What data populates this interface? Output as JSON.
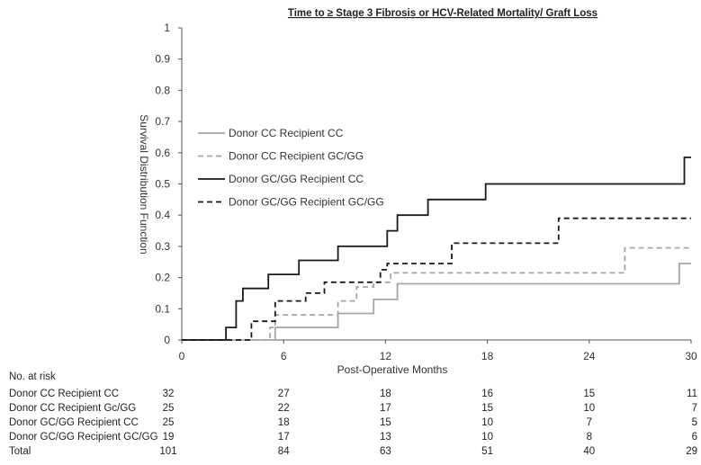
{
  "chart_data": {
    "type": "line",
    "title": "Time to ≥ Stage 3 Fibrosis or HCV-Related Mortality/ Graft Loss",
    "xlabel": "Post-Operative Months",
    "ylabel": "Survival Distribution Function",
    "xlim": [
      0,
      30
    ],
    "ylim": [
      0,
      1
    ],
    "xticks": [
      0,
      6,
      12,
      18,
      24,
      30
    ],
    "yticks": [
      0,
      0.1,
      0.2,
      0.3,
      0.4,
      0.5,
      0.6,
      0.7,
      0.8,
      0.9,
      1
    ],
    "grid": false,
    "legend_position": "left-middle",
    "series": [
      {
        "name": "Donor CC Recipient CC",
        "color": "#a6a6a6",
        "dash": "solid",
        "x": [
          0,
          5.5,
          5.5,
          9.2,
          9.2,
          11.3,
          11.3,
          12.7,
          12.7,
          29.3,
          29.3,
          30
        ],
        "y": [
          0,
          0,
          0.04,
          0.04,
          0.085,
          0.085,
          0.13,
          0.13,
          0.18,
          0.18,
          0.245,
          0.245
        ]
      },
      {
        "name": "Donor CC Recipient GC/GG",
        "color": "#a6a6a6",
        "dash": "dashed",
        "x": [
          0,
          5.2,
          5.2,
          5.5,
          5.5,
          9.2,
          9.2,
          10.3,
          10.3,
          11.3,
          11.3,
          12.3,
          12.3,
          26.1,
          26.1,
          30
        ],
        "y": [
          0,
          0,
          0.04,
          0.04,
          0.08,
          0.08,
          0.125,
          0.125,
          0.17,
          0.17,
          0.185,
          0.185,
          0.215,
          0.215,
          0.295,
          0.295
        ]
      },
      {
        "name": "Donor GC/GG Recipient CC",
        "color": "#1a1a1a",
        "dash": "solid",
        "x": [
          0,
          2.6,
          2.6,
          3.2,
          3.2,
          3.6,
          3.6,
          4.1,
          4.1,
          5.1,
          5.1,
          6.9,
          6.9,
          9.2,
          9.2,
          12.1,
          12.1,
          12.7,
          12.7,
          14.5,
          14.5,
          17.9,
          17.9,
          29.6,
          29.6,
          30
        ],
        "y": [
          0,
          0,
          0.04,
          0.04,
          0.125,
          0.125,
          0.165,
          0.165,
          0.165,
          0.165,
          0.21,
          0.21,
          0.255,
          0.255,
          0.3,
          0.3,
          0.35,
          0.35,
          0.4,
          0.4,
          0.45,
          0.45,
          0.5,
          0.5,
          0.585,
          0.585
        ]
      },
      {
        "name": "Donor GC/GG Recipient GC/GG",
        "color": "#1a1a1a",
        "dash": "dashed",
        "x": [
          0,
          4.1,
          4.1,
          5.1,
          5.1,
          5.5,
          5.5,
          7.3,
          7.3,
          8.4,
          8.4,
          11.7,
          11.7,
          12.1,
          12.1,
          15.9,
          15.9,
          22.2,
          22.2,
          30
        ],
        "y": [
          0,
          0,
          0.06,
          0.06,
          0.06,
          0.06,
          0.125,
          0.125,
          0.15,
          0.15,
          0.185,
          0.185,
          0.225,
          0.225,
          0.245,
          0.245,
          0.31,
          0.31,
          0.39,
          0.39
        ]
      }
    ]
  },
  "risk_table": {
    "header": "No. at risk",
    "rows": [
      {
        "label": "Donor CC Recipient CC",
        "values": [
          "32",
          "27",
          "18",
          "16",
          "15",
          "11"
        ]
      },
      {
        "label": "Donor CC Recipient Gc/GG",
        "values": [
          "25",
          "22",
          "17",
          "15",
          "10",
          "7"
        ]
      },
      {
        "label": "Donor GC/GG Recipient CC",
        "values": [
          "25",
          "18",
          "15",
          "10",
          "7",
          "5"
        ]
      },
      {
        "label": "Donor GC/GG Recipient GC/GG",
        "values": [
          "19",
          "17",
          "13",
          "10",
          "8",
          "6"
        ]
      },
      {
        "label": "Total",
        "values": [
          "101",
          "84",
          "63",
          "51",
          "40",
          "29"
        ]
      }
    ]
  }
}
